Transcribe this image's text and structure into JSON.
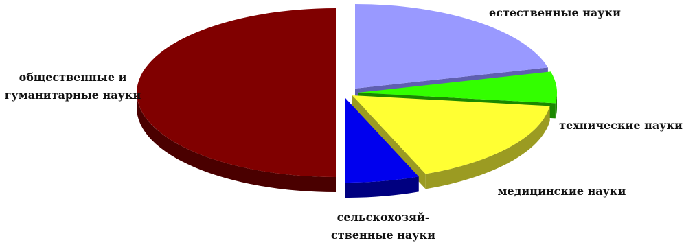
{
  "chart_data": {
    "type": "pie",
    "style": "3d-exploded",
    "categories": [
      "естественные науки",
      "технические науки",
      "медицинские науки",
      "сельскохозяй-ственные науки",
      "общественные и гуманитарные науки"
    ],
    "values": [
      21,
      6,
      17,
      6,
      50
    ],
    "labels": [
      [
        "естественные науки"
      ],
      [
        "технические науки"
      ],
      [
        "медицинские науки"
      ],
      [
        "сельскохозяй-",
        "ственные науки"
      ],
      [
        "общественные и",
        "гуманитарные науки"
      ]
    ],
    "colors": [
      {
        "top": "#9999ff",
        "side": "#5f5fb0"
      },
      {
        "top": "#33ff00",
        "side": "#1a8800"
      },
      {
        "top": "#ffff33",
        "side": "#9b9b22"
      },
      {
        "top": "#0000ee",
        "side": "#000080"
      },
      {
        "top": "#800000",
        "side": "#4a0000"
      }
    ],
    "legend": "none"
  }
}
